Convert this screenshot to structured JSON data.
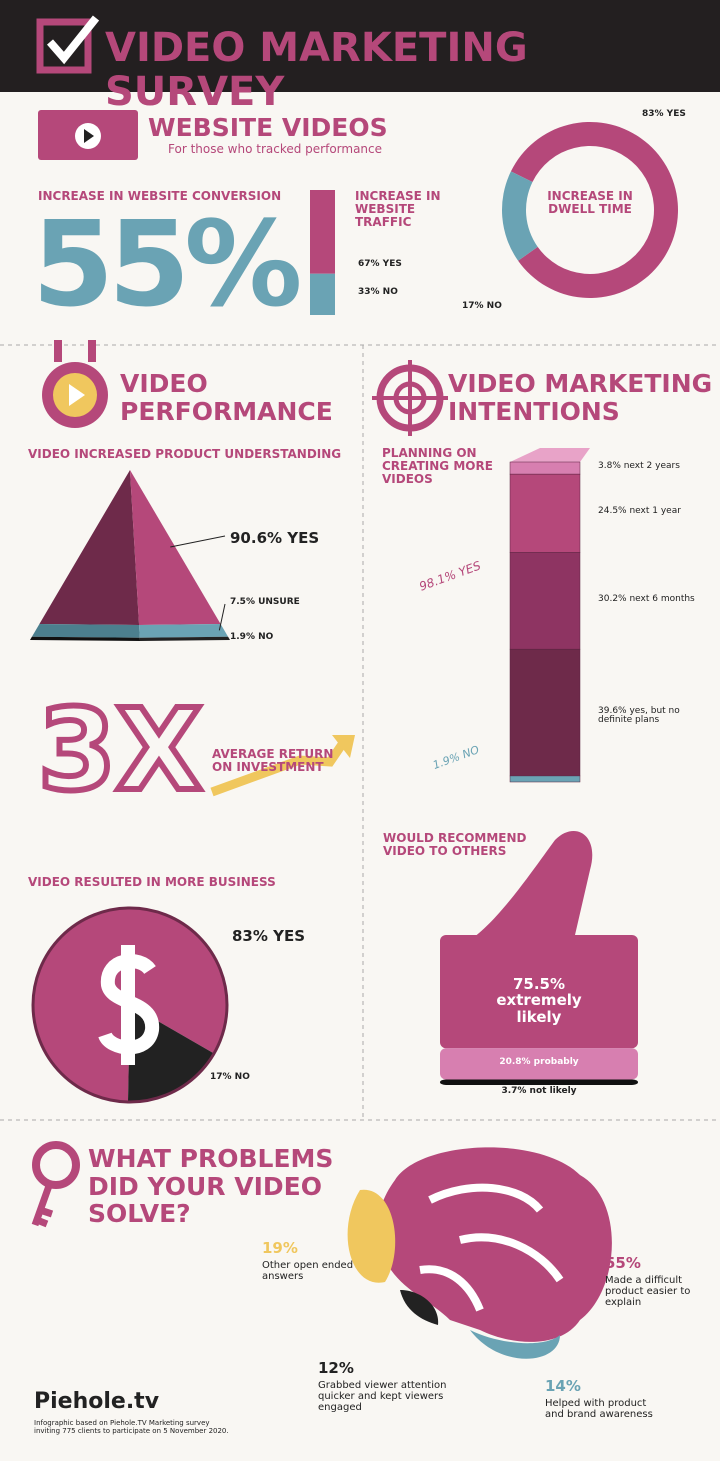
{
  "header": {
    "title": "VIDEO MARKETING SURVEY"
  },
  "website_videos": {
    "title": "WEBSITE VIDEOS",
    "subtitle": "For those who tracked performance",
    "conversion": {
      "label": "INCREASE IN WEBSITE CONVERSION",
      "value": "55%"
    },
    "traffic": {
      "label": "INCREASE IN WEBSITE TRAFFIC",
      "parts": [
        {
          "value": 67,
          "label": "67% YES"
        },
        {
          "value": 33,
          "label": "33% NO"
        }
      ]
    },
    "dwell": {
      "label": "INCREASE IN DWELL TIME",
      "parts": [
        {
          "value": 83,
          "label": "83% YES"
        },
        {
          "value": 17,
          "label": "17% NO"
        }
      ]
    }
  },
  "performance": {
    "title": "VIDEO PERFORMANCE",
    "understanding": {
      "label": "VIDEO INCREASED PRODUCT UNDERSTANDING",
      "parts": [
        {
          "value": 90.6,
          "label": "90.6% YES"
        },
        {
          "value": 7.5,
          "label": "7.5% UNSURE"
        },
        {
          "value": 1.9,
          "label": "1.9% NO"
        }
      ]
    },
    "roi": {
      "value": "3X",
      "label": "AVERAGE RETURN ON INVESTMENT"
    },
    "business": {
      "label": "VIDEO RESULTED IN MORE BUSINESS",
      "parts": [
        {
          "value": 83,
          "label": "83% YES"
        },
        {
          "value": 17,
          "label": "17% NO"
        }
      ]
    }
  },
  "intentions": {
    "title": "VIDEO MARKETING INTENTIONS",
    "planning": {
      "label": "PLANNING ON CREATING MORE VIDEOS",
      "yes_label": "98.1% YES",
      "parts": [
        {
          "value": 3.8,
          "label": "3.8% next 2 years"
        },
        {
          "value": 24.5,
          "label": "24.5% next 1 year"
        },
        {
          "value": 30.2,
          "label": "30.2% next 6 months"
        },
        {
          "value": 39.6,
          "label": "39.6% yes, but no definite plans"
        },
        {
          "value": 1.9,
          "label": "1.9% NO"
        }
      ]
    },
    "recommend": {
      "label": "WOULD RECOMMEND VIDEO TO OTHERS",
      "parts": [
        {
          "value": 75.5,
          "label": "75.5% extremely likely"
        },
        {
          "value": 20.8,
          "label": "20.8% probably"
        },
        {
          "value": 3.7,
          "label": "3.7% not likely"
        }
      ]
    }
  },
  "problems": {
    "title": "WHAT PROBLEMS DID YOUR VIDEO SOLVE?",
    "items": [
      {
        "value": "19%",
        "label": "Other open ended answers"
      },
      {
        "value": "55%",
        "label": "Made a difficult product easier to explain"
      },
      {
        "value": "14%",
        "label": "Helped with product and brand awareness"
      },
      {
        "value": "12%",
        "label": "Grabbed viewer attention quicker and kept viewers engaged"
      }
    ]
  },
  "footer": {
    "logo": "Piehole.tv",
    "note": "Infographic based on Piehole.TV Marketing survey inviting 775 clients to participate on 5 November 2020."
  }
}
